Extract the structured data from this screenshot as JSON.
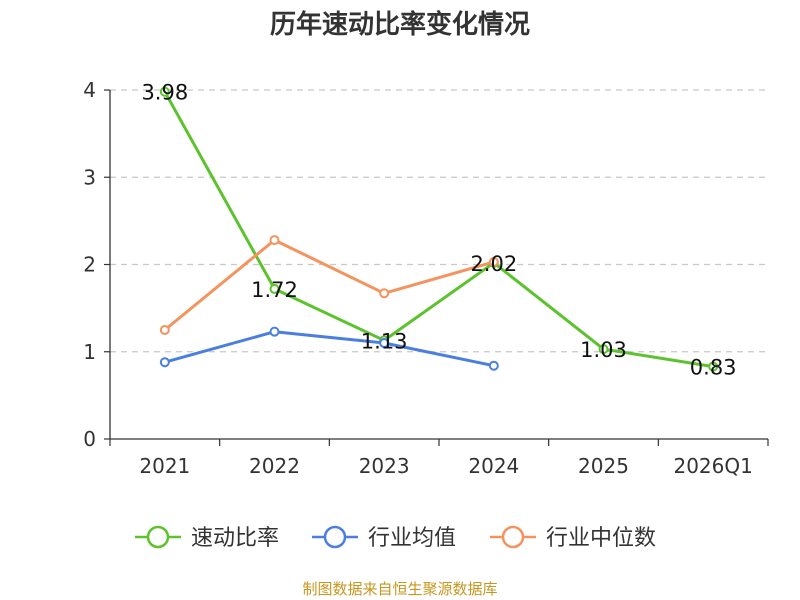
{
  "chart_data": {
    "type": "line",
    "title": "历年速动比率变化情况",
    "xlabel": "",
    "ylabel": "",
    "categories": [
      "2021",
      "2022",
      "2023",
      "2024",
      "2025",
      "2026Q1"
    ],
    "yticks": [
      0,
      1,
      2,
      3,
      4
    ],
    "ylim": [
      0,
      4
    ],
    "grid": true,
    "legend_position": "bottom",
    "series": [
      {
        "name": "速动比率",
        "color": "#5cc22d",
        "values": [
          3.98,
          1.72,
          1.13,
          2.02,
          1.03,
          0.83
        ],
        "data_labels": [
          "3.98",
          "1.72",
          "1.13",
          "2.02",
          "1.03",
          "0.83"
        ]
      },
      {
        "name": "行业均值",
        "color": "#4a7fe0",
        "values": [
          0.88,
          1.23,
          1.1,
          0.84,
          null,
          null
        ],
        "data_labels": []
      },
      {
        "name": "行业中位数",
        "color": "#f5935f",
        "values": [
          1.25,
          2.28,
          1.67,
          2.03,
          null,
          null
        ],
        "data_labels": []
      }
    ]
  },
  "source": "制图数据来自恒生聚源数据库",
  "source_color": "#c8961e"
}
